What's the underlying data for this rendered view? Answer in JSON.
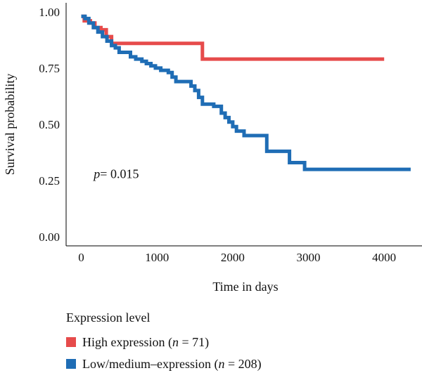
{
  "chart_data": {
    "type": "line",
    "subtype": "kaplan-meier step",
    "xlabel": "Time in days",
    "ylabel": "Survival probability",
    "xlim": [
      -200,
      4500
    ],
    "ylim": [
      -0.04,
      1.04
    ],
    "x_ticks": [
      0,
      1000,
      2000,
      3000,
      4000
    ],
    "y_ticks": [
      0.0,
      0.25,
      0.5,
      0.75,
      1.0
    ],
    "y_tick_labels": [
      "0.00",
      "0.25",
      "0.50",
      "0.75",
      "1.00"
    ],
    "grid": false,
    "annotation": {
      "label": "p",
      "value": "= 0.015",
      "x": 100,
      "y": 0.28
    },
    "legend": {
      "title": "Expression level",
      "position": "bottom-left",
      "entries": [
        {
          "label": "High expression (",
          "n_label": "n",
          "n_value": " = 71)",
          "color": "#e64b4b"
        },
        {
          "label": "Low/medium–expression (",
          "n_label": "n",
          "n_value": " = 208)",
          "color": "#1f6db5"
        }
      ]
    },
    "series": [
      {
        "name": "High expression",
        "color": "#e64b4b",
        "points": [
          [
            0,
            0.98
          ],
          [
            40,
            0.96
          ],
          [
            120,
            0.95
          ],
          [
            180,
            0.93
          ],
          [
            260,
            0.92
          ],
          [
            330,
            0.89
          ],
          [
            400,
            0.86
          ],
          [
            1600,
            0.86
          ],
          [
            1600,
            0.79
          ],
          [
            4000,
            0.79
          ]
        ]
      },
      {
        "name": "Low/medium–expression",
        "color": "#1f6db5",
        "points": [
          [
            0,
            0.98
          ],
          [
            50,
            0.97
          ],
          [
            100,
            0.95
          ],
          [
            160,
            0.93
          ],
          [
            220,
            0.91
          ],
          [
            280,
            0.89
          ],
          [
            340,
            0.87
          ],
          [
            400,
            0.85
          ],
          [
            450,
            0.84
          ],
          [
            500,
            0.82
          ],
          [
            600,
            0.82
          ],
          [
            650,
            0.8
          ],
          [
            720,
            0.79
          ],
          [
            800,
            0.78
          ],
          [
            860,
            0.77
          ],
          [
            920,
            0.76
          ],
          [
            980,
            0.75
          ],
          [
            1050,
            0.74
          ],
          [
            1100,
            0.74
          ],
          [
            1150,
            0.73
          ],
          [
            1200,
            0.71
          ],
          [
            1250,
            0.69
          ],
          [
            1400,
            0.69
          ],
          [
            1450,
            0.67
          ],
          [
            1500,
            0.65
          ],
          [
            1550,
            0.62
          ],
          [
            1600,
            0.59
          ],
          [
            1750,
            0.58
          ],
          [
            1850,
            0.55
          ],
          [
            1900,
            0.53
          ],
          [
            1950,
            0.51
          ],
          [
            2000,
            0.49
          ],
          [
            2050,
            0.47
          ],
          [
            2150,
            0.45
          ],
          [
            2400,
            0.45
          ],
          [
            2450,
            0.38
          ],
          [
            2700,
            0.38
          ],
          [
            2750,
            0.33
          ],
          [
            2950,
            0.33
          ],
          [
            2950,
            0.3
          ],
          [
            4350,
            0.3
          ]
        ]
      }
    ]
  }
}
